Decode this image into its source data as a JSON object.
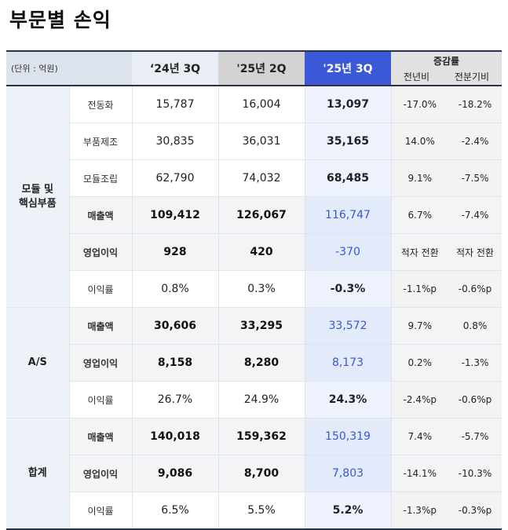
{
  "title": "부문별 손익",
  "header": {
    "unit": "(단위 : 억원)",
    "col_24_3q": "‘24년 3Q",
    "col_25_2q": "'25년 2Q",
    "col_25_3q": "'25년 3Q",
    "change": "증감률",
    "yoy": "전년비",
    "qoq": "전분기비"
  },
  "segments": {
    "module": {
      "line1": "모듈 및",
      "line2": "핵심부품"
    },
    "as": "A/S",
    "total": "합계"
  },
  "rows": [
    {
      "label": "전동화",
      "v24": "15,787",
      "v25b": "16,004",
      "v25": "13,097",
      "yoy": "-17.0%",
      "qoq": "-18.2%"
    },
    {
      "label": "부품제조",
      "v24": "30,835",
      "v25b": "36,031",
      "v25": "35,165",
      "yoy": "14.0%",
      "qoq": "-2.4%"
    },
    {
      "label": "모듈조립",
      "v24": "62,790",
      "v25b": "74,032",
      "v25": "68,485",
      "yoy": "9.1%",
      "qoq": "-7.5%"
    },
    {
      "label": "매출액",
      "v24": "109,412",
      "v25b": "126,067",
      "v25": "116,747",
      "yoy": "6.7%",
      "qoq": "-7.4%"
    },
    {
      "label": "영업이익",
      "v24": "928",
      "v25b": "420",
      "v25": "-370",
      "yoy": "적자 전환",
      "qoq": "적자 전환"
    },
    {
      "label": "이익률",
      "v24": "0.8%",
      "v25b": "0.3%",
      "v25": "-0.3%",
      "yoy": "-1.1%p",
      "qoq": "-0.6%p"
    },
    {
      "label": "매출액",
      "v24": "30,606",
      "v25b": "33,295",
      "v25": "33,572",
      "yoy": "9.7%",
      "qoq": "0.8%"
    },
    {
      "label": "영업이익",
      "v24": "8,158",
      "v25b": "8,280",
      "v25": "8,173",
      "yoy": "0.2%",
      "qoq": "-1.3%"
    },
    {
      "label": "이익률",
      "v24": "26.7%",
      "v25b": "24.9%",
      "v25": "24.3%",
      "yoy": "-2.4%p",
      "qoq": "-0.6%p"
    },
    {
      "label": "매출액",
      "v24": "140,018",
      "v25b": "159,362",
      "v25": "150,319",
      "yoy": "7.4%",
      "qoq": "-5.7%"
    },
    {
      "label": "영업이익",
      "v24": "9,086",
      "v25b": "8,700",
      "v25": "7,803",
      "yoy": "-14.1%",
      "qoq": "-10.3%"
    },
    {
      "label": "이익률",
      "v24": "6.5%",
      "v25b": "5.5%",
      "v25": "5.2%",
      "yoy": "-1.3%p",
      "qoq": "-0.3%p"
    }
  ],
  "colors": {
    "accent": "#3b59d6",
    "value_blue": "#3a57d0",
    "header_border": "#2a3447"
  }
}
